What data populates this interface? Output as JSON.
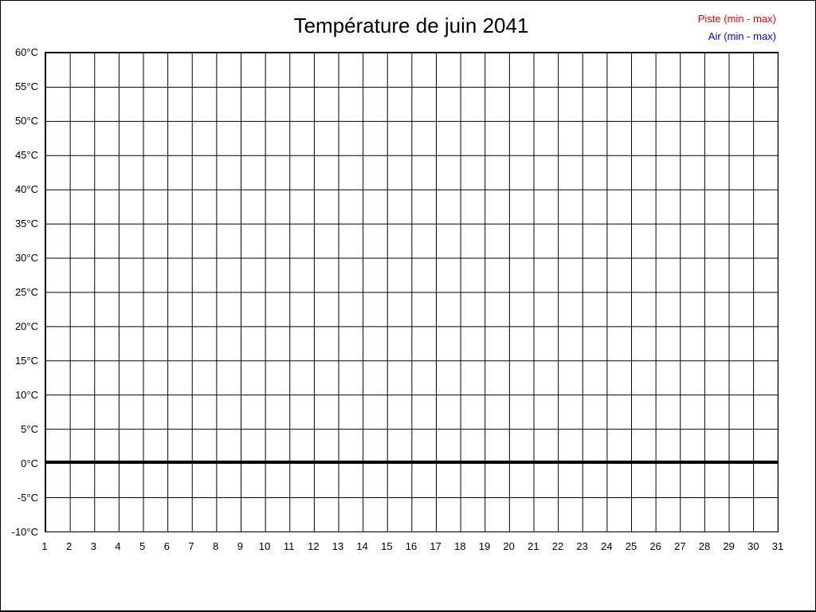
{
  "page": {
    "background": "#ffffff",
    "frame_color": "#000000"
  },
  "chart_data": {
    "type": "line",
    "title": "Température de juin 2041",
    "xlabel": "",
    "ylabel": "",
    "x_ticks": [
      "1",
      "2",
      "3",
      "4",
      "5",
      "6",
      "7",
      "8",
      "9",
      "10",
      "11",
      "12",
      "13",
      "14",
      "15",
      "16",
      "17",
      "18",
      "19",
      "20",
      "21",
      "22",
      "23",
      "24",
      "25",
      "26",
      "27",
      "28",
      "29",
      "30",
      "31"
    ],
    "y_ticks": [
      "60°C",
      "55°C",
      "50°C",
      "45°C",
      "40°C",
      "35°C",
      "30°C",
      "25°C",
      "20°C",
      "15°C",
      "10°C",
      "5°C",
      "0°C",
      "-5°C",
      "-10°C"
    ],
    "xlim": [
      1,
      31
    ],
    "ylim": [
      -10,
      60
    ],
    "y_step": 5,
    "grid": true,
    "grid_color": "#000000",
    "zero_line_value": 0,
    "zero_line_color": "#000000",
    "legend": {
      "position": "top-right",
      "entries": [
        {
          "label": "Piste (min - max)",
          "color": "#ff0000"
        },
        {
          "label": "Air (min - max)",
          "color": "#0000ff"
        }
      ]
    },
    "series": [
      {
        "name": "Piste (min - max)",
        "color": "#ff0000",
        "values": []
      },
      {
        "name": "Air (min - max)",
        "color": "#0000ff",
        "values": []
      }
    ]
  }
}
